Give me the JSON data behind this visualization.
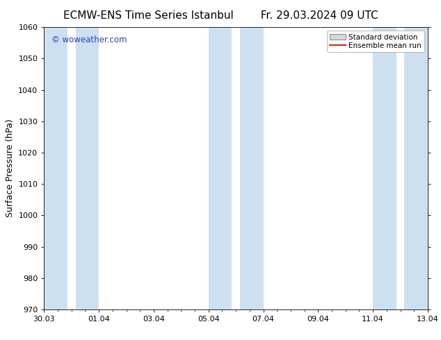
{
  "title_left": "ECMW-ENS Time Series Istanbul",
  "title_right": "Fr. 29.03.2024 09 UTC",
  "ylabel": "Surface Pressure (hPa)",
  "ylim": [
    970,
    1060
  ],
  "yticks": [
    970,
    980,
    990,
    1000,
    1010,
    1020,
    1030,
    1040,
    1050,
    1060
  ],
  "xlim": [
    0,
    14
  ],
  "xtick_labels": [
    "30.03",
    "01.04",
    "03.04",
    "05.04",
    "07.04",
    "09.04",
    "11.04",
    "13.04"
  ],
  "xtick_positions": [
    0,
    2,
    4,
    6,
    8,
    10,
    12,
    14
  ],
  "shaded_bands": [
    {
      "x_start": 0.0,
      "x_end": 0.85,
      "color": "#cde0f0"
    },
    {
      "x_start": 1.15,
      "x_end": 2.0,
      "color": "#cde0f0"
    },
    {
      "x_start": 6.0,
      "x_end": 6.85,
      "color": "#cde0f0"
    },
    {
      "x_start": 7.15,
      "x_end": 8.0,
      "color": "#cde0f0"
    },
    {
      "x_start": 12.0,
      "x_end": 12.85,
      "color": "#cde0f0"
    },
    {
      "x_start": 13.15,
      "x_end": 14.0,
      "color": "#cde0f0"
    }
  ],
  "watermark": "© woweather.com",
  "watermark_color": "#2244bb",
  "legend_sd_facecolor": "#d0d8e0",
  "legend_sd_edgecolor": "#909090",
  "legend_mean_color": "#dd2200",
  "bg_color": "#ffffff",
  "title_fontsize": 11,
  "axis_fontsize": 8,
  "ylabel_fontsize": 9,
  "legend_fontsize": 7.5
}
